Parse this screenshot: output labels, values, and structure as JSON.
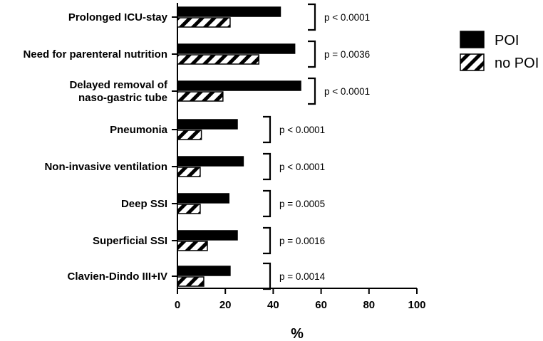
{
  "chart_data": {
    "type": "bar",
    "orientation": "horizontal",
    "title": "",
    "xlabel": "%",
    "ylabel": "",
    "xlim": [
      0,
      100
    ],
    "xticks": [
      "0",
      "20",
      "40",
      "60",
      "80",
      "100"
    ],
    "categories": [
      [
        "Prolonged ICU-stay"
      ],
      [
        "Need for parenteral nutrition"
      ],
      [
        "Delayed removal of",
        "naso-gastric tube"
      ],
      [
        "Pneumonia"
      ],
      [
        "Non-invasive ventilation"
      ],
      [
        "Deep SSI"
      ],
      [
        "Superficial SSI"
      ],
      [
        "Clavien-Dindo III+IV"
      ]
    ],
    "series": [
      {
        "name": "POI",
        "pattern": "solid",
        "color": "#000000",
        "values": [
          43,
          49,
          51.5,
          25,
          27.5,
          21.5,
          25,
          22
        ]
      },
      {
        "name": "no POI",
        "pattern": "hatched",
        "color": "#000000",
        "values": [
          22,
          34,
          19,
          10,
          9.5,
          9.5,
          12.5,
          11
        ]
      }
    ],
    "annotations": [
      "p < 0.0001",
      "p = 0.0036",
      "p < 0.0001",
      "p < 0.0001",
      "p < 0.0001",
      "p = 0.0005",
      "p = 0.0016",
      "p = 0.0014"
    ],
    "legend": {
      "position": "top-right",
      "entries": [
        "POI",
        "no POI"
      ]
    }
  }
}
